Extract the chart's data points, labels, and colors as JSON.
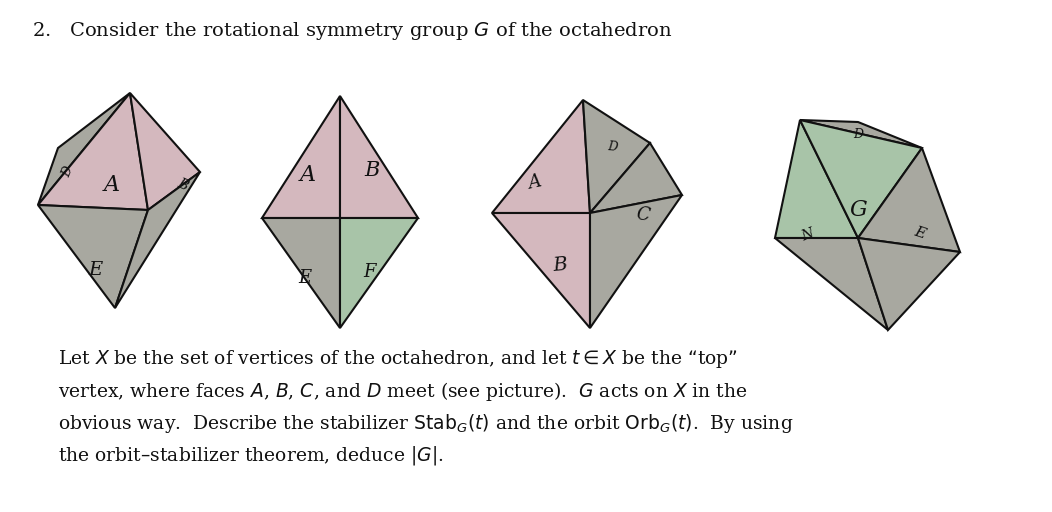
{
  "bg": "#ffffff",
  "pink": "#d4b8be",
  "green": "#a8c4a8",
  "gray": "#a8a8a0",
  "ec": "#111111",
  "lw": 1.5,
  "title": "2.   Consider the rotational symmetry group $G$ of the octahedron",
  "para": [
    "Let $X$ be the set of vertices of the octahedron, and let $t \\in X$ be the “top”",
    "vertex, where faces $A$, $B$, $C$, and $D$ meet (see picture).  $G$ acts on $X$ in the",
    "obvious way.  Describe the stabilizer $\\mathrm{Stab}_G(t)$ and the orbit $\\mathrm{Orb}_G(t)$.  By using",
    "the orbit–stabilizer theorem, deduce $|G|$."
  ]
}
